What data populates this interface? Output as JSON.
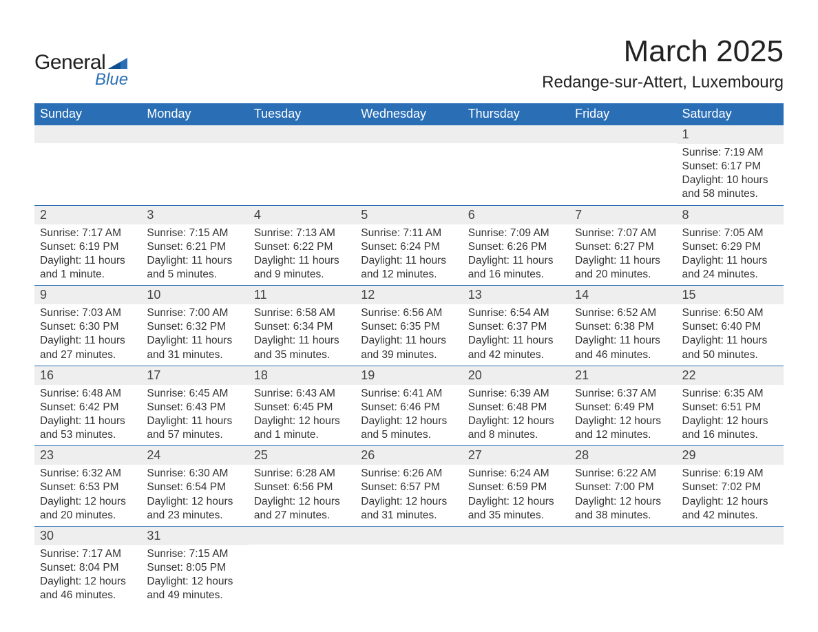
{
  "brand": {
    "general": "General",
    "blue": "Blue",
    "accent_color": "#2a6fb5"
  },
  "header": {
    "month_title": "March 2025",
    "location": "Redange-sur-Attert, Luxembourg"
  },
  "calendar": {
    "header_bg": "#2a6fb5",
    "header_text": "#ffffff",
    "daynum_bg": "#eeeeee",
    "border_color": "#2a6fb5",
    "font_size_header": 18,
    "font_size_daynum": 18,
    "font_size_text": 15.5,
    "day_names": [
      "Sunday",
      "Monday",
      "Tuesday",
      "Wednesday",
      "Thursday",
      "Friday",
      "Saturday"
    ],
    "weeks": [
      [
        {
          "day": "",
          "lines": [
            "",
            "",
            "",
            ""
          ]
        },
        {
          "day": "",
          "lines": [
            "",
            "",
            "",
            ""
          ]
        },
        {
          "day": "",
          "lines": [
            "",
            "",
            "",
            ""
          ]
        },
        {
          "day": "",
          "lines": [
            "",
            "",
            "",
            ""
          ]
        },
        {
          "day": "",
          "lines": [
            "",
            "",
            "",
            ""
          ]
        },
        {
          "day": "",
          "lines": [
            "",
            "",
            "",
            ""
          ]
        },
        {
          "day": "1",
          "lines": [
            "Sunrise: 7:19 AM",
            "Sunset: 6:17 PM",
            "Daylight: 10 hours",
            "and 58 minutes."
          ]
        }
      ],
      [
        {
          "day": "2",
          "lines": [
            "Sunrise: 7:17 AM",
            "Sunset: 6:19 PM",
            "Daylight: 11 hours",
            "and 1 minute."
          ]
        },
        {
          "day": "3",
          "lines": [
            "Sunrise: 7:15 AM",
            "Sunset: 6:21 PM",
            "Daylight: 11 hours",
            "and 5 minutes."
          ]
        },
        {
          "day": "4",
          "lines": [
            "Sunrise: 7:13 AM",
            "Sunset: 6:22 PM",
            "Daylight: 11 hours",
            "and 9 minutes."
          ]
        },
        {
          "day": "5",
          "lines": [
            "Sunrise: 7:11 AM",
            "Sunset: 6:24 PM",
            "Daylight: 11 hours",
            "and 12 minutes."
          ]
        },
        {
          "day": "6",
          "lines": [
            "Sunrise: 7:09 AM",
            "Sunset: 6:26 PM",
            "Daylight: 11 hours",
            "and 16 minutes."
          ]
        },
        {
          "day": "7",
          "lines": [
            "Sunrise: 7:07 AM",
            "Sunset: 6:27 PM",
            "Daylight: 11 hours",
            "and 20 minutes."
          ]
        },
        {
          "day": "8",
          "lines": [
            "Sunrise: 7:05 AM",
            "Sunset: 6:29 PM",
            "Daylight: 11 hours",
            "and 24 minutes."
          ]
        }
      ],
      [
        {
          "day": "9",
          "lines": [
            "Sunrise: 7:03 AM",
            "Sunset: 6:30 PM",
            "Daylight: 11 hours",
            "and 27 minutes."
          ]
        },
        {
          "day": "10",
          "lines": [
            "Sunrise: 7:00 AM",
            "Sunset: 6:32 PM",
            "Daylight: 11 hours",
            "and 31 minutes."
          ]
        },
        {
          "day": "11",
          "lines": [
            "Sunrise: 6:58 AM",
            "Sunset: 6:34 PM",
            "Daylight: 11 hours",
            "and 35 minutes."
          ]
        },
        {
          "day": "12",
          "lines": [
            "Sunrise: 6:56 AM",
            "Sunset: 6:35 PM",
            "Daylight: 11 hours",
            "and 39 minutes."
          ]
        },
        {
          "day": "13",
          "lines": [
            "Sunrise: 6:54 AM",
            "Sunset: 6:37 PM",
            "Daylight: 11 hours",
            "and 42 minutes."
          ]
        },
        {
          "day": "14",
          "lines": [
            "Sunrise: 6:52 AM",
            "Sunset: 6:38 PM",
            "Daylight: 11 hours",
            "and 46 minutes."
          ]
        },
        {
          "day": "15",
          "lines": [
            "Sunrise: 6:50 AM",
            "Sunset: 6:40 PM",
            "Daylight: 11 hours",
            "and 50 minutes."
          ]
        }
      ],
      [
        {
          "day": "16",
          "lines": [
            "Sunrise: 6:48 AM",
            "Sunset: 6:42 PM",
            "Daylight: 11 hours",
            "and 53 minutes."
          ]
        },
        {
          "day": "17",
          "lines": [
            "Sunrise: 6:45 AM",
            "Sunset: 6:43 PM",
            "Daylight: 11 hours",
            "and 57 minutes."
          ]
        },
        {
          "day": "18",
          "lines": [
            "Sunrise: 6:43 AM",
            "Sunset: 6:45 PM",
            "Daylight: 12 hours",
            "and 1 minute."
          ]
        },
        {
          "day": "19",
          "lines": [
            "Sunrise: 6:41 AM",
            "Sunset: 6:46 PM",
            "Daylight: 12 hours",
            "and 5 minutes."
          ]
        },
        {
          "day": "20",
          "lines": [
            "Sunrise: 6:39 AM",
            "Sunset: 6:48 PM",
            "Daylight: 12 hours",
            "and 8 minutes."
          ]
        },
        {
          "day": "21",
          "lines": [
            "Sunrise: 6:37 AM",
            "Sunset: 6:49 PM",
            "Daylight: 12 hours",
            "and 12 minutes."
          ]
        },
        {
          "day": "22",
          "lines": [
            "Sunrise: 6:35 AM",
            "Sunset: 6:51 PM",
            "Daylight: 12 hours",
            "and 16 minutes."
          ]
        }
      ],
      [
        {
          "day": "23",
          "lines": [
            "Sunrise: 6:32 AM",
            "Sunset: 6:53 PM",
            "Daylight: 12 hours",
            "and 20 minutes."
          ]
        },
        {
          "day": "24",
          "lines": [
            "Sunrise: 6:30 AM",
            "Sunset: 6:54 PM",
            "Daylight: 12 hours",
            "and 23 minutes."
          ]
        },
        {
          "day": "25",
          "lines": [
            "Sunrise: 6:28 AM",
            "Sunset: 6:56 PM",
            "Daylight: 12 hours",
            "and 27 minutes."
          ]
        },
        {
          "day": "26",
          "lines": [
            "Sunrise: 6:26 AM",
            "Sunset: 6:57 PM",
            "Daylight: 12 hours",
            "and 31 minutes."
          ]
        },
        {
          "day": "27",
          "lines": [
            "Sunrise: 6:24 AM",
            "Sunset: 6:59 PM",
            "Daylight: 12 hours",
            "and 35 minutes."
          ]
        },
        {
          "day": "28",
          "lines": [
            "Sunrise: 6:22 AM",
            "Sunset: 7:00 PM",
            "Daylight: 12 hours",
            "and 38 minutes."
          ]
        },
        {
          "day": "29",
          "lines": [
            "Sunrise: 6:19 AM",
            "Sunset: 7:02 PM",
            "Daylight: 12 hours",
            "and 42 minutes."
          ]
        }
      ],
      [
        {
          "day": "30",
          "lines": [
            "Sunrise: 7:17 AM",
            "Sunset: 8:04 PM",
            "Daylight: 12 hours",
            "and 46 minutes."
          ]
        },
        {
          "day": "31",
          "lines": [
            "Sunrise: 7:15 AM",
            "Sunset: 8:05 PM",
            "Daylight: 12 hours",
            "and 49 minutes."
          ]
        },
        {
          "day": "",
          "lines": [
            "",
            "",
            "",
            ""
          ]
        },
        {
          "day": "",
          "lines": [
            "",
            "",
            "",
            ""
          ]
        },
        {
          "day": "",
          "lines": [
            "",
            "",
            "",
            ""
          ]
        },
        {
          "day": "",
          "lines": [
            "",
            "",
            "",
            ""
          ]
        },
        {
          "day": "",
          "lines": [
            "",
            "",
            "",
            ""
          ]
        }
      ]
    ]
  }
}
